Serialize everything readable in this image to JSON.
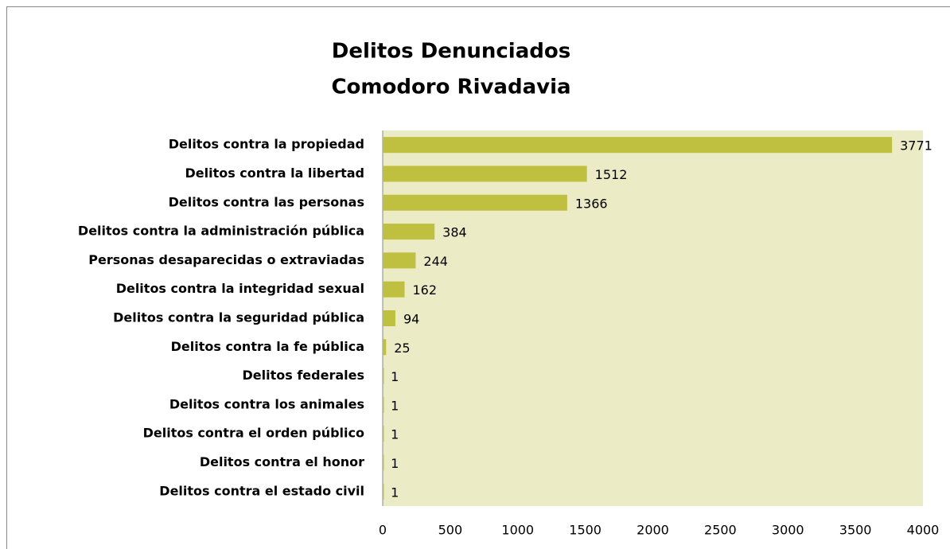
{
  "chart_data": {
    "type": "bar",
    "orientation": "horizontal",
    "title": [
      "Delitos Denunciados",
      "Comodoro Rivadavia"
    ],
    "categories": [
      "Delitos contra la propiedad",
      "Delitos contra la libertad",
      "Delitos contra las personas",
      "Delitos contra la administración pública",
      "Personas desaparecidas o extraviadas",
      "Delitos contra la integridad sexual",
      "Delitos contra la seguridad pública",
      "Delitos contra la fe pública",
      "Delitos federales",
      "Delitos contra los animales",
      "Delitos contra el orden público",
      "Delitos contra el honor",
      "Delitos contra el estado civil"
    ],
    "values": [
      3771,
      1512,
      1366,
      384,
      244,
      162,
      94,
      25,
      1,
      1,
      1,
      1,
      1
    ],
    "color": "#c0c040",
    "plot_background": "#ebebc5",
    "xlim": [
      0,
      4000
    ],
    "xticks": [
      0,
      500,
      1000,
      1500,
      2000,
      2500,
      3000,
      3500,
      4000
    ],
    "grid": false
  }
}
